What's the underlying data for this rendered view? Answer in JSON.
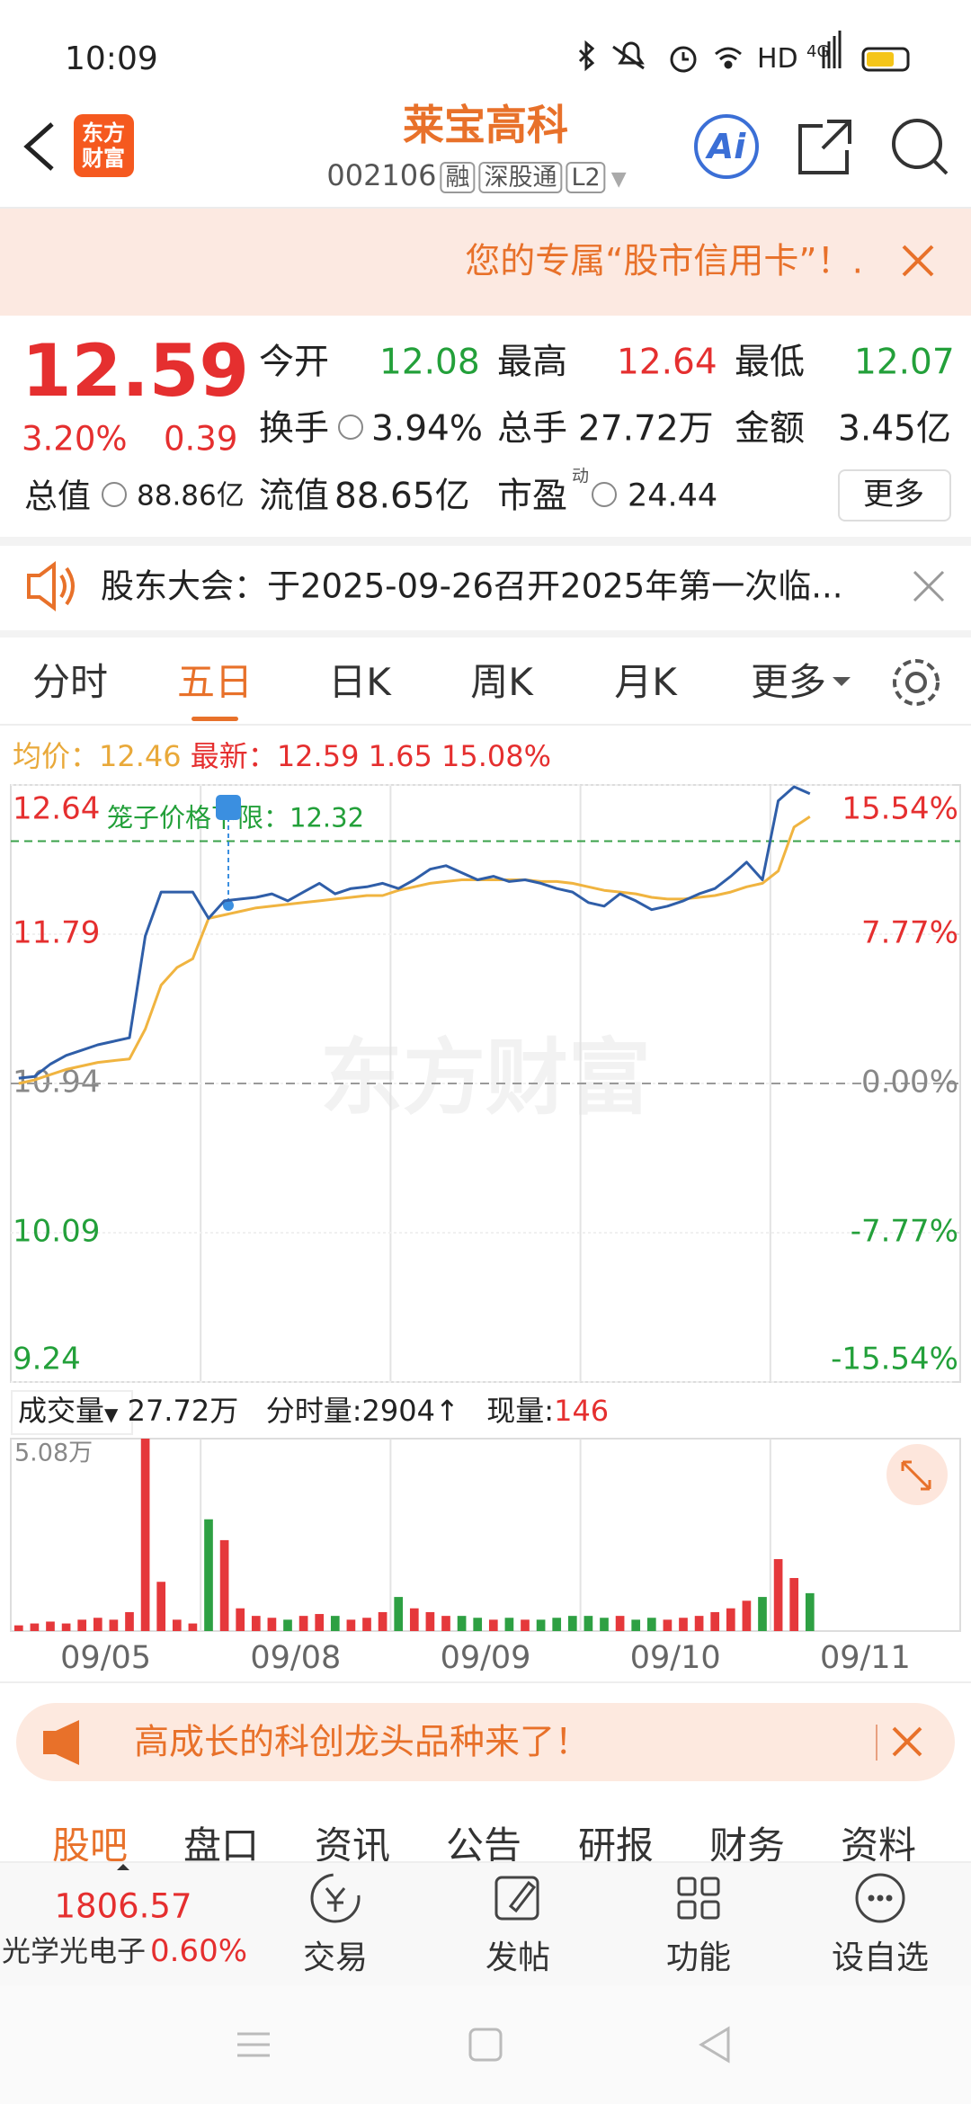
{
  "status_bar": {
    "time": "10:09",
    "network": "HD",
    "signal": "4G"
  },
  "header": {
    "logo": [
      "东方",
      "财富"
    ],
    "title": "莱宝高科",
    "code": "002106",
    "tags": [
      "融",
      "深股通",
      "L2"
    ],
    "ai": "Ai"
  },
  "promo_banner": {
    "text": "您的专属“股市信用卡”！."
  },
  "quote": {
    "price": "12.59",
    "change_pct": "3.20%",
    "change": "0.39",
    "open_label": "今开",
    "open": "12.08",
    "high_label": "最高",
    "high": "12.64",
    "low_label": "最低",
    "low": "12.07",
    "turnover_label": "换手",
    "turnover": "3.94%",
    "volume_label": "总手",
    "volume": "27.72万",
    "amount_label": "金额",
    "amount": "3.45亿",
    "total_value_label": "总值",
    "total_value": "88.86亿",
    "float_value_label": "流值",
    "float_value": "88.65亿",
    "pe_label": "市盈",
    "pe_mark": "动",
    "pe": "24.44",
    "more": "更多"
  },
  "notice": {
    "text": "股东大会：于2025-09-26召开2025年第一次临..."
  },
  "tabs": [
    "分时",
    "五日",
    "日K",
    "周K",
    "月K",
    "更多"
  ],
  "summary": {
    "avg_label": "均价：",
    "avg": "12.46",
    "latest_label": "最新：",
    "latest": "12.59",
    "change": "1.65",
    "change_pct": "15.08%"
  },
  "chart_data": {
    "type": "line",
    "watermark": "东方财富",
    "days": [
      "09/05",
      "09/08",
      "09/09",
      "09/10",
      "09/11"
    ],
    "series": [
      {
        "color": "#2f5ea8",
        "values": [
          10.97,
          10.98,
          11.05,
          11.1,
          11.13,
          11.16,
          11.18,
          11.2,
          11.78,
          12.03,
          12.03,
          12.03,
          11.88,
          11.98,
          11.99,
          12.0,
          12.02,
          11.98,
          12.03,
          12.08,
          12.02,
          12.05,
          12.06,
          12.08,
          12.05,
          12.1,
          12.16,
          12.18,
          12.14,
          12.1,
          12.12,
          12.09,
          12.1,
          12.08,
          12.05,
          12.03,
          11.97,
          11.95,
          12.02,
          11.98,
          11.93,
          11.95,
          11.98,
          12.02,
          12.05,
          12.12,
          12.2,
          12.1,
          12.55,
          12.63,
          12.59,
          null,
          null,
          null,
          null,
          null,
          null,
          null,
          null,
          null
        ]
      },
      {
        "name": "均价",
        "color": "#f0b440",
        "values": [
          10.94,
          10.96,
          10.99,
          11.02,
          11.04,
          11.06,
          11.07,
          11.08,
          11.25,
          11.5,
          11.6,
          11.65,
          11.88,
          11.9,
          11.92,
          11.94,
          11.95,
          11.96,
          11.97,
          11.98,
          11.99,
          12.0,
          12.01,
          12.01,
          12.04,
          12.06,
          12.08,
          12.09,
          12.1,
          12.1,
          12.1,
          12.1,
          12.1,
          12.09,
          12.09,
          12.08,
          12.06,
          12.04,
          12.03,
          12.02,
          12.0,
          11.99,
          11.99,
          12.0,
          12.01,
          12.03,
          12.06,
          12.08,
          12.15,
          12.4,
          12.46,
          null,
          null,
          null,
          null,
          null,
          null,
          null,
          null,
          null
        ]
      }
    ],
    "ylim": [
      9.24,
      12.64
    ],
    "yticks": [
      12.64,
      11.79,
      10.94,
      10.09,
      9.24
    ],
    "y2lim": [
      -15.54,
      15.54
    ],
    "y2ticks": [
      {
        "value": 15.54,
        "label": "15.54%"
      },
      {
        "value": 7.77,
        "label": "7.77%"
      },
      {
        "value": 0,
        "label": "0.00%"
      },
      {
        "value": -7.77,
        "label": "-7.77%"
      },
      {
        "value": -15.54,
        "label": "-15.54%"
      }
    ],
    "ref_line": {
      "label": "笼子价格下限：",
      "value": 12.32
    },
    "volume": {
      "label": "成交量",
      "total": "27.72万",
      "tick_label": "分时量:",
      "tick": "2904↑",
      "current_label": "现量:",
      "current": "146",
      "ylim": [
        0,
        5.08
      ],
      "yticks": [
        {
          "value": 5.08,
          "label": "5.08万"
        }
      ],
      "values": [
        0.15,
        0.2,
        0.25,
        0.2,
        0.3,
        0.35,
        0.3,
        0.5,
        5.08,
        1.3,
        0.3,
        0.2,
        2.95,
        2.4,
        0.6,
        0.4,
        0.35,
        0.3,
        0.4,
        0.45,
        0.4,
        0.3,
        0.35,
        0.5,
        0.9,
        0.6,
        0.5,
        0.4,
        0.4,
        0.35,
        0.3,
        0.35,
        0.3,
        0.3,
        0.35,
        0.4,
        0.4,
        0.35,
        0.4,
        0.3,
        0.35,
        0.3,
        0.35,
        0.4,
        0.5,
        0.6,
        0.8,
        0.9,
        1.9,
        1.4,
        1.0,
        null,
        null,
        null,
        null,
        null,
        null,
        null,
        null,
        null
      ]
    }
  },
  "ad_banner": {
    "text": "高成长的科创龙头品种来了！"
  },
  "bottom_tabs": [
    "股吧",
    "盘口",
    "资讯",
    "公告",
    "研报",
    "财务",
    "资料"
  ],
  "index": {
    "value": "1806.57",
    "name": "光学光电子",
    "change": "0.60%"
  },
  "toolbar": [
    "交易",
    "发帖",
    "功能",
    "设自选"
  ]
}
